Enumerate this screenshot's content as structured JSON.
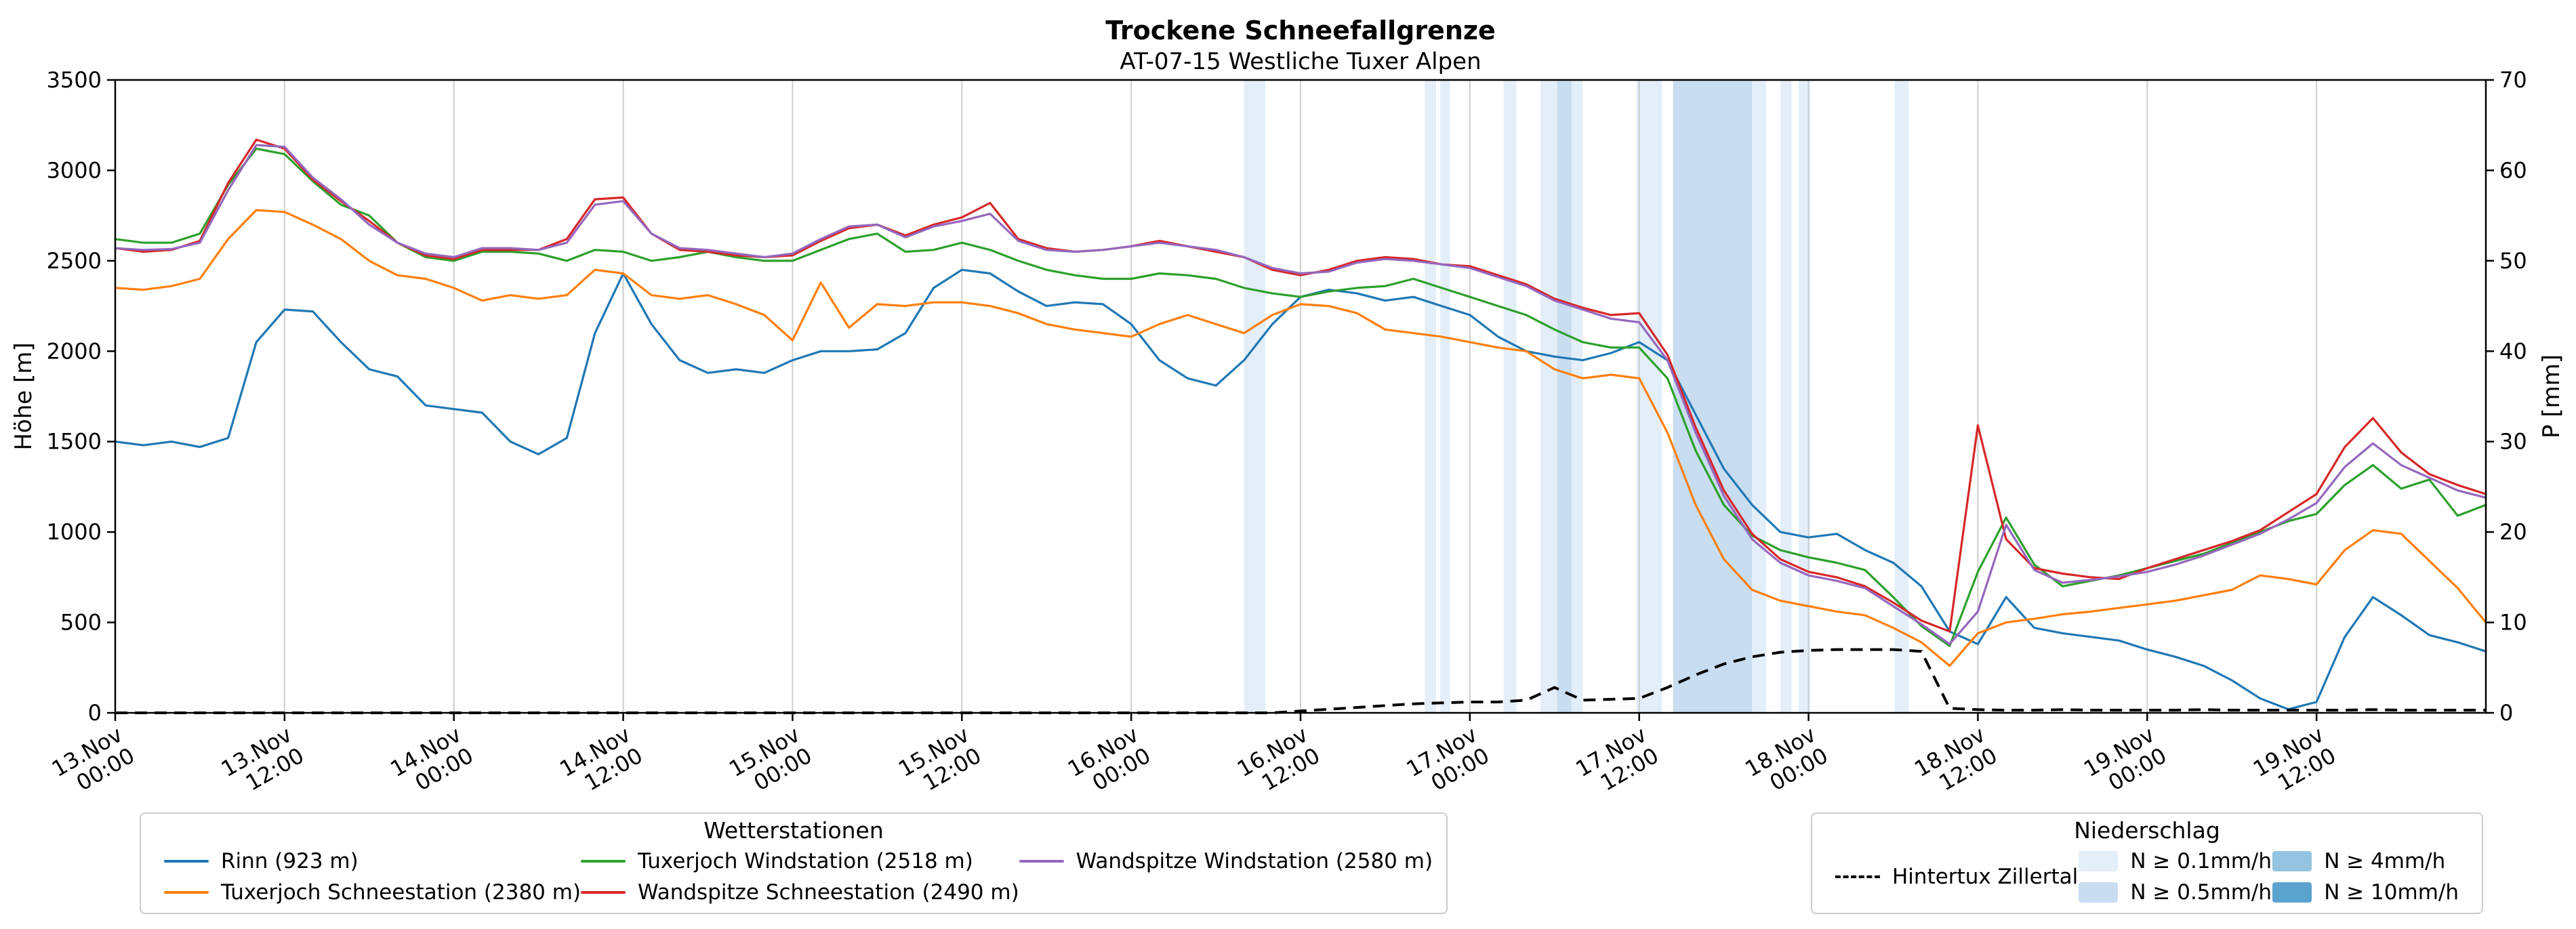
{
  "title": "Trockene Schneefallgrenze",
  "subtitle": "AT-07-15 Westliche Tuxer Alpen",
  "axes": {
    "y_left": {
      "label": "Höhe [m]",
      "min": 0,
      "max": 3500,
      "ticks": [
        0,
        500,
        1000,
        1500,
        2000,
        2500,
        3000,
        3500
      ]
    },
    "y_right": {
      "label": "P [mm]",
      "min": 0,
      "max": 70,
      "ticks": [
        0,
        10,
        20,
        30,
        40,
        50,
        60,
        70
      ]
    },
    "x": {
      "min_hours": 0,
      "max_hours": 168,
      "tick_interval_hours": 12,
      "tick_labels": [
        [
          "13.Nov",
          "00:00"
        ],
        [
          "13.Nov",
          "12:00"
        ],
        [
          "14.Nov",
          "00:00"
        ],
        [
          "14.Nov",
          "12:00"
        ],
        [
          "15.Nov",
          "00:00"
        ],
        [
          "15.Nov",
          "12:00"
        ],
        [
          "16.Nov",
          "00:00"
        ],
        [
          "16.Nov",
          "12:00"
        ],
        [
          "17.Nov",
          "00:00"
        ],
        [
          "17.Nov",
          "12:00"
        ],
        [
          "18.Nov",
          "00:00"
        ],
        [
          "18.Nov",
          "12:00"
        ],
        [
          "19.Nov",
          "00:00"
        ],
        [
          "19.Nov",
          "12:00"
        ]
      ]
    }
  },
  "legend_stations": {
    "title": "Wetterstationen",
    "items": [
      {
        "label": "Rinn (923 m)",
        "color": "#1f77b4"
      },
      {
        "label": "Tuxerjoch Schneestation (2380 m)",
        "color": "#ff7f0e"
      },
      {
        "label": "Tuxerjoch Windstation (2518 m)",
        "color": "#2ca02c"
      },
      {
        "label": "Wandspitze Schneestation (2490 m)",
        "color": "#d62728"
      },
      {
        "label": "Wandspitze Windstation (2580 m)",
        "color": "#9467bd"
      }
    ]
  },
  "legend_precip": {
    "title": "Niederschlag",
    "line_label": "Hintertux Zillertal",
    "line_color": "#000000",
    "patches": [
      {
        "label": "N ≥ 0.1mm/h",
        "color": "#e3eef9"
      },
      {
        "label": "N ≥ 0.5mm/h",
        "color": "#c9ddf0"
      },
      {
        "label": "N ≥ 4mm/h",
        "color": "#94c4df"
      },
      {
        "label": "N ≥ 10mm/h",
        "color": "#5ba3cf"
      }
    ]
  },
  "chart_data": {
    "type": "line",
    "x_unit": "hours since 13.Nov 00:00",
    "x_hours": [
      0,
      2,
      4,
      6,
      8,
      10,
      12,
      14,
      16,
      18,
      20,
      22,
      24,
      26,
      28,
      30,
      32,
      34,
      36,
      38,
      40,
      42,
      44,
      46,
      48,
      50,
      52,
      54,
      56,
      58,
      60,
      62,
      64,
      66,
      68,
      70,
      72,
      74,
      76,
      78,
      80,
      82,
      84,
      86,
      88,
      90,
      92,
      94,
      96,
      98,
      100,
      102,
      104,
      106,
      108,
      110,
      112,
      114,
      116,
      118,
      120,
      122,
      124,
      126,
      128,
      130,
      132,
      134,
      136,
      138,
      140,
      142,
      144,
      146,
      148,
      150,
      152,
      154,
      156,
      158,
      160,
      162,
      164,
      166,
      168
    ],
    "series": [
      {
        "id": "rinn",
        "name": "Rinn (923 m)",
        "color": "#1f77b4",
        "axis": "left",
        "values": [
          1500,
          1480,
          1500,
          1470,
          1520,
          2050,
          2230,
          2220,
          2050,
          1900,
          1860,
          1700,
          1680,
          1660,
          1500,
          1430,
          1520,
          2100,
          2430,
          2150,
          1950,
          1880,
          1900,
          1880,
          1950,
          2000,
          2000,
          2010,
          2100,
          2350,
          2450,
          2430,
          2330,
          2250,
          2270,
          2260,
          2150,
          1950,
          1850,
          1810,
          1950,
          2150,
          2300,
          2340,
          2320,
          2280,
          2300,
          2250,
          2200,
          2080,
          2000,
          1970,
          1950,
          1990,
          2050,
          1950,
          1650,
          1350,
          1150,
          1000,
          970,
          990,
          900,
          830,
          700,
          450,
          380,
          640,
          470,
          440,
          420,
          400,
          350,
          310,
          260,
          180,
          80,
          20,
          60,
          420,
          640,
          540,
          430,
          390,
          340
        ]
      },
      {
        "id": "tuxerjoch-schnee",
        "name": "Tuxerjoch Schneestation (2380 m)",
        "color": "#ff7f0e",
        "axis": "left",
        "values": [
          2350,
          2340,
          2360,
          2400,
          2620,
          2780,
          2770,
          2700,
          2620,
          2500,
          2420,
          2400,
          2350,
          2280,
          2310,
          2290,
          2310,
          2450,
          2430,
          2310,
          2290,
          2310,
          2260,
          2200,
          2060,
          2380,
          2130,
          2260,
          2250,
          2270,
          2270,
          2250,
          2210,
          2150,
          2120,
          2100,
          2080,
          2150,
          2200,
          2150,
          2100,
          2200,
          2260,
          2250,
          2210,
          2120,
          2100,
          2080,
          2050,
          2020,
          2000,
          1900,
          1850,
          1870,
          1850,
          1550,
          1150,
          850,
          680,
          620,
          590,
          560,
          540,
          470,
          390,
          260,
          440,
          500,
          520,
          545,
          560,
          580,
          600,
          620,
          650,
          680,
          760,
          740,
          710,
          900,
          1010,
          990,
          840,
          690,
          500
        ]
      },
      {
        "id": "tuxerjoch-wind",
        "name": "Tuxerjoch Windstation (2518 m)",
        "color": "#2ca02c",
        "axis": "left",
        "values": [
          2620,
          2600,
          2600,
          2650,
          2920,
          3120,
          3090,
          2940,
          2810,
          2750,
          2600,
          2520,
          2500,
          2550,
          2550,
          2540,
          2500,
          2560,
          2550,
          2500,
          2520,
          2550,
          2520,
          2500,
          2500,
          2560,
          2620,
          2650,
          2550,
          2560,
          2600,
          2560,
          2500,
          2450,
          2420,
          2400,
          2400,
          2430,
          2420,
          2400,
          2350,
          2320,
          2300,
          2330,
          2350,
          2360,
          2400,
          2350,
          2300,
          2250,
          2200,
          2120,
          2050,
          2020,
          2020,
          1850,
          1450,
          1150,
          980,
          900,
          860,
          830,
          790,
          640,
          480,
          370,
          780,
          1080,
          820,
          700,
          730,
          760,
          800,
          840,
          880,
          940,
          1000,
          1060,
          1100,
          1260,
          1370,
          1240,
          1290,
          1090,
          1150
        ]
      },
      {
        "id": "wandspitze-schnee",
        "name": "Wandspitze Schneestation (2490 m)",
        "color": "#d62728",
        "axis": "left",
        "values": [
          2570,
          2550,
          2560,
          2610,
          2930,
          3170,
          3120,
          2950,
          2830,
          2720,
          2600,
          2530,
          2510,
          2560,
          2560,
          2560,
          2620,
          2840,
          2850,
          2650,
          2560,
          2550,
          2530,
          2520,
          2530,
          2610,
          2680,
          2700,
          2640,
          2700,
          2740,
          2820,
          2620,
          2570,
          2550,
          2560,
          2580,
          2610,
          2580,
          2550,
          2520,
          2450,
          2420,
          2450,
          2500,
          2520,
          2510,
          2480,
          2470,
          2420,
          2370,
          2290,
          2240,
          2200,
          2210,
          1980,
          1580,
          1230,
          990,
          850,
          780,
          750,
          700,
          610,
          510,
          450,
          1590,
          960,
          800,
          770,
          750,
          740,
          800,
          850,
          900,
          950,
          1010,
          1110,
          1210,
          1470,
          1630,
          1440,
          1320,
          1260,
          1210
        ]
      },
      {
        "id": "wandspitze-wind",
        "name": "Wandspitze Windstation (2580 m)",
        "color": "#9467bd",
        "axis": "left",
        "values": [
          2570,
          2560,
          2565,
          2600,
          2890,
          3140,
          3130,
          2960,
          2840,
          2700,
          2600,
          2540,
          2520,
          2570,
          2570,
          2560,
          2600,
          2810,
          2830,
          2650,
          2570,
          2560,
          2540,
          2520,
          2540,
          2620,
          2690,
          2700,
          2630,
          2690,
          2720,
          2760,
          2610,
          2560,
          2550,
          2560,
          2580,
          2600,
          2580,
          2560,
          2520,
          2460,
          2430,
          2440,
          2490,
          2510,
          2500,
          2480,
          2460,
          2410,
          2360,
          2280,
          2230,
          2180,
          2160,
          1950,
          1550,
          1200,
          960,
          830,
          760,
          730,
          690,
          590,
          490,
          380,
          560,
          1040,
          790,
          720,
          735,
          755,
          780,
          820,
          870,
          930,
          990,
          1070,
          1160,
          1360,
          1490,
          1370,
          1300,
          1230,
          1190
        ]
      }
    ],
    "precip_line": {
      "id": "hintertux",
      "name": "Hintertux Zillertal",
      "color": "#000000",
      "axis": "right",
      "dashed": true,
      "values": [
        0,
        0,
        0,
        0,
        0,
        0,
        0,
        0,
        0,
        0,
        0,
        0,
        0,
        0,
        0,
        0,
        0,
        0,
        0,
        0,
        0,
        0,
        0,
        0,
        0,
        0,
        0,
        0,
        0,
        0,
        0,
        0,
        0,
        0,
        0,
        0,
        0,
        0,
        0,
        0,
        0,
        0,
        0.2,
        0.4,
        0.6,
        0.8,
        1.0,
        1.1,
        1.2,
        1.2,
        1.4,
        2.8,
        1.4,
        1.5,
        1.6,
        2.8,
        4.2,
        5.4,
        6.2,
        6.7,
        6.9,
        7.0,
        7.0,
        7.0,
        6.8,
        0.5,
        0.35,
        0.3,
        0.3,
        0.35,
        0.3,
        0.3,
        0.3,
        0.3,
        0.35,
        0.3,
        0.3,
        0.3,
        0.3,
        0.3,
        0.35,
        0.3,
        0.3,
        0.3,
        0.3
      ]
    },
    "band_colors": {
      "0.1": "#e3eef9",
      "0.5": "#c9ddf0",
      "4": "#94c4df",
      "10": "#5ba3cf"
    },
    "precip_bands": [
      {
        "start_h": 80.0,
        "end_h": 81.5,
        "level": "0.1"
      },
      {
        "start_h": 92.8,
        "end_h": 93.6,
        "level": "0.1"
      },
      {
        "start_h": 93.9,
        "end_h": 94.6,
        "level": "0.1"
      },
      {
        "start_h": 98.4,
        "end_h": 99.3,
        "level": "0.1"
      },
      {
        "start_h": 101.0,
        "end_h": 104.0,
        "level": "0.1"
      },
      {
        "start_h": 102.2,
        "end_h": 103.2,
        "level": "0.5"
      },
      {
        "start_h": 107.8,
        "end_h": 109.6,
        "level": "0.1"
      },
      {
        "start_h": 110.4,
        "end_h": 116.0,
        "level": "0.5"
      },
      {
        "start_h": 116.0,
        "end_h": 117.0,
        "level": "0.1"
      },
      {
        "start_h": 118.0,
        "end_h": 118.8,
        "level": "0.1"
      },
      {
        "start_h": 119.3,
        "end_h": 120.1,
        "level": "0.1"
      },
      {
        "start_h": 126.1,
        "end_h": 127.1,
        "level": "0.1"
      }
    ]
  }
}
